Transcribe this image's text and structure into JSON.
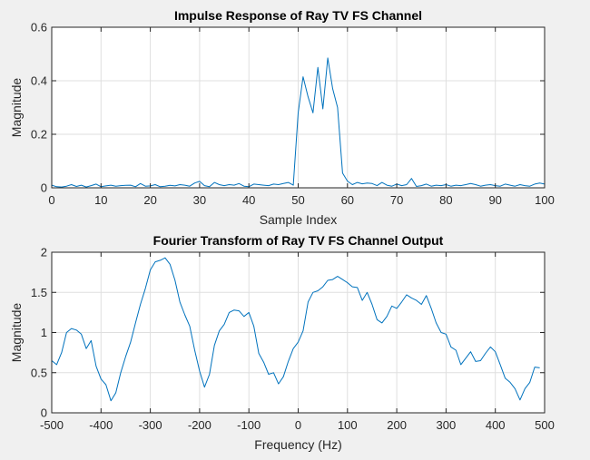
{
  "chart_data": [
    {
      "type": "line",
      "title": "Impulse Response of Ray TV FS Channel",
      "xlabel": "Sample Index",
      "ylabel": "Magnitude",
      "xlim": [
        0,
        100
      ],
      "ylim": [
        0,
        0.6
      ],
      "xticks": [
        0,
        10,
        20,
        30,
        40,
        50,
        60,
        70,
        80,
        90,
        100
      ],
      "yticks": [
        0,
        0.2,
        0.4,
        0.6
      ],
      "xtick_labels": [
        "0",
        "10",
        "20",
        "30",
        "40",
        "50",
        "60",
        "70",
        "80",
        "90",
        "100"
      ],
      "ytick_labels": [
        "0",
        "0.2",
        "0.4",
        "0.6"
      ],
      "grid": true,
      "line_color": "#0072bd",
      "series": [
        {
          "x": [
            0,
            1,
            2,
            3,
            4,
            5,
            6,
            7,
            8,
            9,
            10,
            11,
            12,
            13,
            14,
            15,
            16,
            17,
            18,
            19,
            20,
            21,
            22,
            23,
            24,
            25,
            26,
            27,
            28,
            29,
            30,
            31,
            32,
            33,
            34,
            35,
            36,
            37,
            38,
            39,
            40,
            41,
            42,
            43,
            44,
            45,
            46,
            47,
            48,
            49,
            50,
            51,
            52,
            53,
            54,
            55,
            56,
            57,
            58,
            59,
            60,
            61,
            62,
            63,
            64,
            65,
            66,
            67,
            68,
            69,
            70,
            71,
            72,
            73,
            74,
            75,
            76,
            77,
            78,
            79,
            80,
            81,
            82,
            83,
            84,
            85,
            86,
            87,
            88,
            89,
            90,
            91,
            92,
            93,
            94,
            95,
            96,
            97,
            98,
            99,
            100
          ],
          "y": [
            0.01,
            0.004,
            0.003,
            0.006,
            0.012,
            0.005,
            0.01,
            0.003,
            0.008,
            0.014,
            0.004,
            0.007,
            0.01,
            0.006,
            0.008,
            0.009,
            0.01,
            0.004,
            0.016,
            0.006,
            0.007,
            0.012,
            0.004,
            0.006,
            0.009,
            0.007,
            0.012,
            0.01,
            0.006,
            0.018,
            0.024,
            0.008,
            0.004,
            0.02,
            0.012,
            0.008,
            0.012,
            0.01,
            0.016,
            0.006,
            0.004,
            0.014,
            0.012,
            0.01,
            0.008,
            0.014,
            0.012,
            0.016,
            0.02,
            0.01,
            0.28,
            0.415,
            0.34,
            0.28,
            0.45,
            0.295,
            0.485,
            0.37,
            0.3,
            0.055,
            0.025,
            0.012,
            0.02,
            0.015,
            0.018,
            0.016,
            0.008,
            0.02,
            0.01,
            0.006,
            0.014,
            0.008,
            0.012,
            0.035,
            0.005,
            0.008,
            0.014,
            0.006,
            0.01,
            0.008,
            0.012,
            0.006,
            0.01,
            0.008,
            0.012,
            0.016,
            0.012,
            0.006,
            0.01,
            0.012,
            0.008,
            0.006,
            0.014,
            0.01,
            0.006,
            0.012,
            0.008,
            0.006,
            0.014,
            0.018,
            0.014
          ]
        }
      ]
    },
    {
      "type": "line",
      "title": "Fourier Transform of Ray TV FS Channel Output",
      "xlabel": "Frequency (Hz)",
      "ylabel": "Magnitude",
      "xlim": [
        -500,
        500
      ],
      "ylim": [
        0,
        2
      ],
      "xticks": [
        -500,
        -400,
        -300,
        -200,
        -100,
        0,
        100,
        200,
        300,
        400,
        500
      ],
      "yticks": [
        0,
        0.5,
        1,
        1.5,
        2
      ],
      "xtick_labels": [
        "-500",
        "-400",
        "-300",
        "-200",
        "-100",
        "0",
        "100",
        "200",
        "300",
        "400",
        "500"
      ],
      "ytick_labels": [
        "0",
        "0.5",
        "1",
        "1.5",
        "2"
      ],
      "grid": true,
      "line_color": "#0072bd",
      "series": [
        {
          "x": [
            -500,
            -490,
            -480,
            -470,
            -460,
            -450,
            -440,
            -430,
            -420,
            -410,
            -400,
            -390,
            -380,
            -370,
            -360,
            -350,
            -340,
            -330,
            -320,
            -310,
            -300,
            -290,
            -280,
            -270,
            -260,
            -250,
            -240,
            -230,
            -220,
            -210,
            -200,
            -190,
            -180,
            -170,
            -160,
            -150,
            -140,
            -130,
            -120,
            -110,
            -100,
            -90,
            -80,
            -70,
            -60,
            -50,
            -40,
            -30,
            -20,
            -10,
            0,
            10,
            20,
            30,
            40,
            50,
            60,
            70,
            80,
            90,
            100,
            110,
            120,
            130,
            140,
            150,
            160,
            170,
            180,
            190,
            200,
            210,
            220,
            230,
            240,
            250,
            260,
            270,
            280,
            290,
            300,
            310,
            320,
            330,
            340,
            350,
            360,
            370,
            380,
            390,
            400,
            410,
            420,
            430,
            440,
            450,
            460,
            470,
            480,
            490
          ],
          "y": [
            0.65,
            0.6,
            0.75,
            1.0,
            1.05,
            1.03,
            0.98,
            0.8,
            0.9,
            0.58,
            0.42,
            0.35,
            0.15,
            0.25,
            0.5,
            0.7,
            0.88,
            1.12,
            1.35,
            1.55,
            1.78,
            1.88,
            1.9,
            1.93,
            1.85,
            1.65,
            1.38,
            1.22,
            1.08,
            0.78,
            0.52,
            0.32,
            0.48,
            0.84,
            1.02,
            1.1,
            1.25,
            1.28,
            1.27,
            1.2,
            1.25,
            1.08,
            0.74,
            0.63,
            0.48,
            0.5,
            0.36,
            0.45,
            0.64,
            0.8,
            0.88,
            1.02,
            1.38,
            1.5,
            1.52,
            1.57,
            1.65,
            1.66,
            1.7,
            1.66,
            1.62,
            1.57,
            1.56,
            1.4,
            1.5,
            1.35,
            1.16,
            1.12,
            1.2,
            1.33,
            1.3,
            1.38,
            1.47,
            1.43,
            1.4,
            1.35,
            1.46,
            1.3,
            1.12,
            1.0,
            0.98,
            0.82,
            0.78,
            0.6,
            0.68,
            0.76,
            0.64,
            0.65,
            0.74,
            0.82,
            0.76,
            0.6,
            0.43,
            0.38,
            0.3,
            0.16,
            0.3,
            0.38,
            0.57,
            0.56
          ]
        }
      ]
    }
  ]
}
